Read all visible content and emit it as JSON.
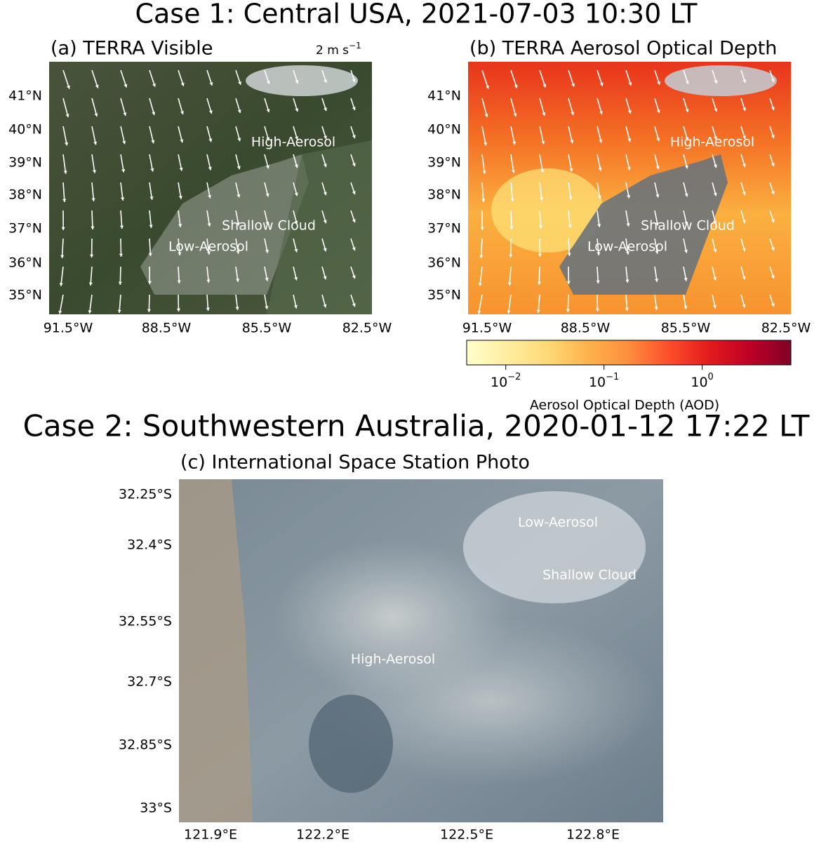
{
  "case1": {
    "title": "Case 1: Central USA, 2021-07-03 10:30 LT",
    "panel_a": {
      "title": "(a) TERRA Visible",
      "wind_scale": {
        "text": "2 m s",
        "exponent": "−1"
      },
      "annotations": [
        "High-Aerosol",
        "Shallow Cloud",
        "Low-Aerosol"
      ]
    },
    "panel_b": {
      "title": "(b) TERRA Aerosol Optical Depth",
      "annotations": [
        "High-Aerosol",
        "Shallow Cloud",
        "Low-Aerosol"
      ]
    },
    "lat_ticks": [
      "41°N",
      "40°N",
      "39°N",
      "38°N",
      "37°N",
      "36°N",
      "35°N"
    ],
    "lon_ticks": [
      "91.5°W",
      "88.5°W",
      "85.5°W",
      "82.5°W"
    ],
    "colorbar": {
      "label": "Aerosol Optical Depth (AOD)",
      "scale": "log",
      "range": [
        0.004,
        8
      ],
      "colors": [
        "#ffffcc",
        "#ffeda0",
        "#fed976",
        "#feb24c",
        "#fd8d3c",
        "#fc4e2a",
        "#e31a1c",
        "#bd0026",
        "#800026"
      ],
      "ticks": [
        {
          "value": 0.01,
          "base": "10",
          "exponent": "−2"
        },
        {
          "value": 0.1,
          "base": "10",
          "exponent": "−1"
        },
        {
          "value": 1,
          "base": "10",
          "exponent": "0"
        }
      ]
    }
  },
  "case2": {
    "title": "Case 2: Southwestern Australia, 2020-01-12 17:22 LT",
    "panel_c": {
      "title": "(c) International Space Station Photo",
      "annotations": [
        "Low-Aerosol",
        "Shallow Cloud",
        "High-Aerosol"
      ]
    },
    "lat_ticks": [
      "32.25°S",
      "32.4°S",
      "32.55°S",
      "32.7°S",
      "32.85°S",
      "33°S"
    ],
    "lon_ticks": [
      "121.9°E",
      "122.2°E",
      "122.5°E",
      "122.8°E"
    ]
  }
}
